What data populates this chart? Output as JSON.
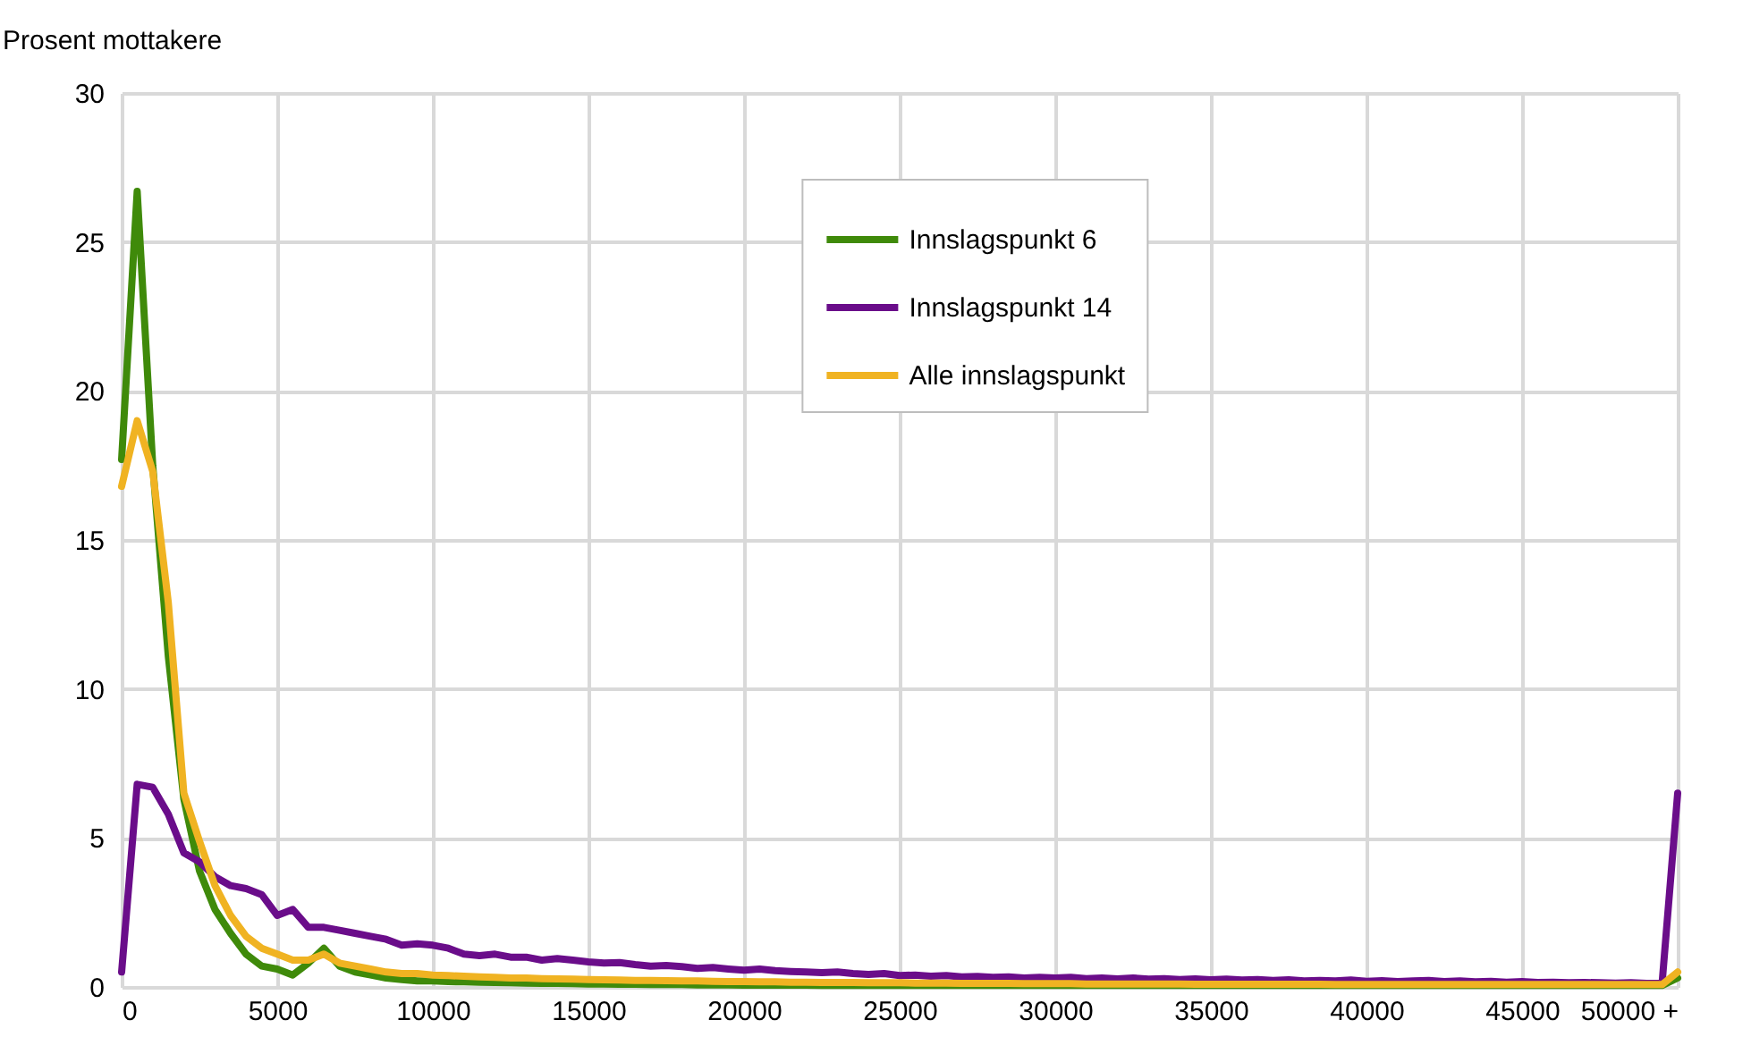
{
  "chart_data": {
    "type": "line",
    "ylabel": "Prosent mottakere",
    "x": [
      0,
      500,
      1000,
      1500,
      2000,
      2500,
      3000,
      3500,
      4000,
      4500,
      5000,
      5500,
      6000,
      6500,
      7000,
      7500,
      8000,
      8500,
      9000,
      9500,
      10000,
      10500,
      11000,
      11500,
      12000,
      12500,
      13000,
      13500,
      14000,
      14500,
      15000,
      15500,
      16000,
      16500,
      17000,
      17500,
      18000,
      18500,
      19000,
      19500,
      20000,
      20500,
      21000,
      21500,
      22000,
      22500,
      23000,
      23500,
      24000,
      24500,
      25000,
      25500,
      26000,
      26500,
      27000,
      27500,
      28000,
      28500,
      29000,
      29500,
      30000,
      30500,
      31000,
      31500,
      32000,
      32500,
      33000,
      33500,
      34000,
      34500,
      35000,
      35500,
      36000,
      36500,
      37000,
      37500,
      38000,
      38500,
      39000,
      39500,
      40000,
      40500,
      41000,
      41500,
      42000,
      42500,
      43000,
      43500,
      44000,
      44500,
      45000,
      45500,
      46000,
      46500,
      47000,
      47500,
      48000,
      48500,
      49000,
      49500,
      50000
    ],
    "series": [
      {
        "name": "Innslagspunkt 6",
        "color": "#3f8a0a",
        "values": [
          17.7,
          26.7,
          17.5,
          11.1,
          6.3,
          3.9,
          2.6,
          1.8,
          1.1,
          0.7,
          0.6,
          0.4,
          0.8,
          1.3,
          0.7,
          0.5,
          0.4,
          0.3,
          0.25,
          0.2,
          0.2,
          0.18,
          0.17,
          0.16,
          0.15,
          0.14,
          0.13,
          0.12,
          0.12,
          0.11,
          0.1,
          0.1,
          0.09,
          0.09,
          0.08,
          0.08,
          0.08,
          0.07,
          0.07,
          0.07,
          0.06,
          0.06,
          0.06,
          0.06,
          0.06,
          0.05,
          0.05,
          0.05,
          0.05,
          0.05,
          0.05,
          0.05,
          0.05,
          0.05,
          0.05,
          0.05,
          0.05,
          0.05,
          0.05,
          0.05,
          0.05,
          0.05,
          0.05,
          0.05,
          0.05,
          0.05,
          0.05,
          0.05,
          0.05,
          0.05,
          0.05,
          0.05,
          0.05,
          0.05,
          0.05,
          0.05,
          0.05,
          0.05,
          0.05,
          0.05,
          0.05,
          0.05,
          0.05,
          0.05,
          0.05,
          0.05,
          0.05,
          0.05,
          0.05,
          0.05,
          0.05,
          0.05,
          0.05,
          0.05,
          0.05,
          0.05,
          0.05,
          0.05,
          0.05,
          0.05,
          0.3
        ]
      },
      {
        "name": "Innslagspunkt 14",
        "color": "#6a0d8a",
        "values": [
          0.5,
          6.8,
          6.7,
          5.8,
          4.5,
          4.2,
          3.7,
          3.4,
          3.3,
          3.1,
          2.4,
          2.6,
          2.0,
          2.0,
          1.9,
          1.8,
          1.7,
          1.6,
          1.4,
          1.45,
          1.4,
          1.3,
          1.1,
          1.05,
          1.1,
          1.0,
          1.0,
          0.9,
          0.95,
          0.9,
          0.84,
          0.8,
          0.82,
          0.75,
          0.7,
          0.72,
          0.68,
          0.62,
          0.65,
          0.6,
          0.56,
          0.6,
          0.55,
          0.52,
          0.5,
          0.48,
          0.5,
          0.45,
          0.42,
          0.45,
          0.38,
          0.4,
          0.36,
          0.38,
          0.34,
          0.35,
          0.32,
          0.34,
          0.3,
          0.32,
          0.3,
          0.32,
          0.28,
          0.3,
          0.27,
          0.3,
          0.26,
          0.28,
          0.25,
          0.27,
          0.24,
          0.26,
          0.23,
          0.25,
          0.22,
          0.24,
          0.2,
          0.22,
          0.2,
          0.23,
          0.19,
          0.21,
          0.18,
          0.2,
          0.22,
          0.18,
          0.2,
          0.17,
          0.19,
          0.16,
          0.18,
          0.15,
          0.16,
          0.14,
          0.15,
          0.14,
          0.13,
          0.14,
          0.12,
          0.13,
          6.5
        ]
      },
      {
        "name": "Alle innslagspunkt",
        "color": "#f0b322",
        "values": [
          16.8,
          19.0,
          17.3,
          12.9,
          6.5,
          4.9,
          3.4,
          2.4,
          1.7,
          1.3,
          1.1,
          0.9,
          0.9,
          1.1,
          0.8,
          0.7,
          0.6,
          0.5,
          0.45,
          0.45,
          0.4,
          0.38,
          0.36,
          0.34,
          0.32,
          0.3,
          0.3,
          0.28,
          0.27,
          0.26,
          0.25,
          0.24,
          0.23,
          0.22,
          0.22,
          0.21,
          0.2,
          0.2,
          0.19,
          0.18,
          0.18,
          0.17,
          0.17,
          0.16,
          0.16,
          0.15,
          0.15,
          0.15,
          0.14,
          0.14,
          0.14,
          0.13,
          0.13,
          0.13,
          0.12,
          0.12,
          0.12,
          0.12,
          0.11,
          0.11,
          0.11,
          0.11,
          0.1,
          0.1,
          0.1,
          0.1,
          0.1,
          0.1,
          0.1,
          0.09,
          0.09,
          0.09,
          0.09,
          0.09,
          0.09,
          0.09,
          0.09,
          0.09,
          0.08,
          0.08,
          0.08,
          0.08,
          0.08,
          0.08,
          0.08,
          0.08,
          0.08,
          0.08,
          0.08,
          0.08,
          0.08,
          0.08,
          0.08,
          0.08,
          0.08,
          0.08,
          0.08,
          0.08,
          0.08,
          0.08,
          0.5
        ]
      }
    ],
    "xlim": [
      0,
      50000
    ],
    "xticks": [
      0,
      5000,
      10000,
      15000,
      20000,
      25000,
      30000,
      35000,
      40000,
      45000,
      {
        "value": 50000,
        "label": "50000 +"
      }
    ],
    "ylim": [
      0,
      30
    ],
    "yticks": [
      0,
      5,
      10,
      15,
      20,
      25,
      30
    ],
    "grid": true,
    "legend": "top",
    "line_style": "solid",
    "marker": "none"
  }
}
